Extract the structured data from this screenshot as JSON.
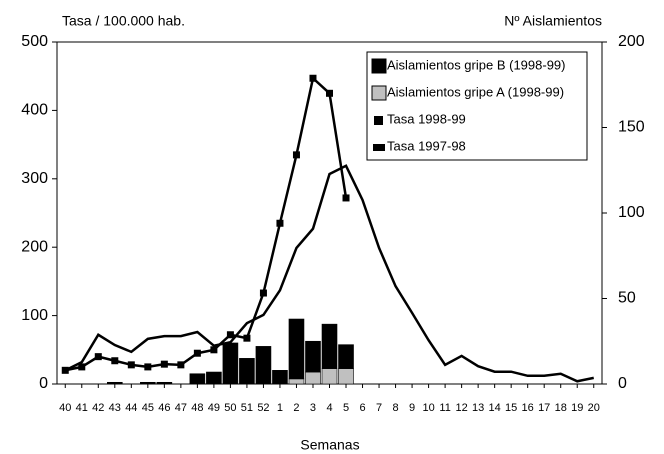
{
  "chart_data": {
    "type": "bar-line",
    "y_label": "Tasa / 100.000 hab.",
    "y2_label": "Nº Aislamientos",
    "x_label": "Semanas",
    "categories": [
      "40",
      "41",
      "42",
      "43",
      "44",
      "45",
      "46",
      "47",
      "48",
      "49",
      "50",
      "51",
      "52",
      "1",
      "2",
      "3",
      "4",
      "5",
      "6",
      "7",
      "8",
      "9",
      "10",
      "11",
      "12",
      "13",
      "14",
      "15",
      "16",
      "17",
      "18",
      "19",
      "20"
    ],
    "ylim": [
      0,
      500
    ],
    "yticks": [
      0,
      100,
      200,
      300,
      400,
      500
    ],
    "y2lim": [
      0,
      200
    ],
    "y2ticks": [
      0,
      50,
      100,
      150,
      200
    ],
    "legend": "top-right",
    "series": [
      {
        "name": "Aislamientos gripe B (1998-99)",
        "type": "bar",
        "axis": "y2",
        "color": "#000000",
        "values": [
          0,
          0,
          0,
          1,
          0,
          1,
          1,
          0,
          6,
          7,
          24,
          15,
          22,
          8,
          35,
          18,
          26,
          14,
          null,
          null,
          null,
          null,
          null,
          null,
          null,
          null,
          null,
          null,
          null,
          null,
          null,
          null,
          null
        ]
      },
      {
        "name": "Aislamientos gripe A (1998-99)",
        "type": "bar",
        "axis": "y2",
        "color": "#c0c0c0",
        "values": [
          0,
          0,
          0,
          0,
          0,
          0,
          0,
          0,
          0,
          0,
          0,
          0,
          0,
          0,
          3,
          7,
          9,
          9,
          null,
          null,
          null,
          null,
          null,
          null,
          null,
          null,
          null,
          null,
          null,
          null,
          null,
          null,
          null
        ]
      },
      {
        "name": "Tasa 1998-99",
        "type": "line",
        "marker": true,
        "color": "#000000",
        "values": [
          20,
          25,
          40,
          34,
          28,
          25,
          29,
          28,
          45,
          50,
          72,
          67,
          133,
          235,
          335,
          447,
          425,
          272,
          null,
          null,
          null,
          null,
          null,
          null,
          null,
          null,
          null,
          null,
          null,
          null,
          null,
          null,
          null
        ]
      },
      {
        "name": "Tasa 1997-98",
        "type": "line",
        "marker": false,
        "color": "#000000",
        "values": [
          20,
          32,
          72,
          57,
          47,
          66,
          70,
          70,
          76,
          56,
          61,
          89,
          101,
          137,
          199,
          227,
          307,
          319,
          269,
          199,
          143,
          104,
          64,
          28,
          41,
          26,
          18,
          18,
          12,
          12,
          15,
          4,
          9
        ]
      }
    ]
  }
}
